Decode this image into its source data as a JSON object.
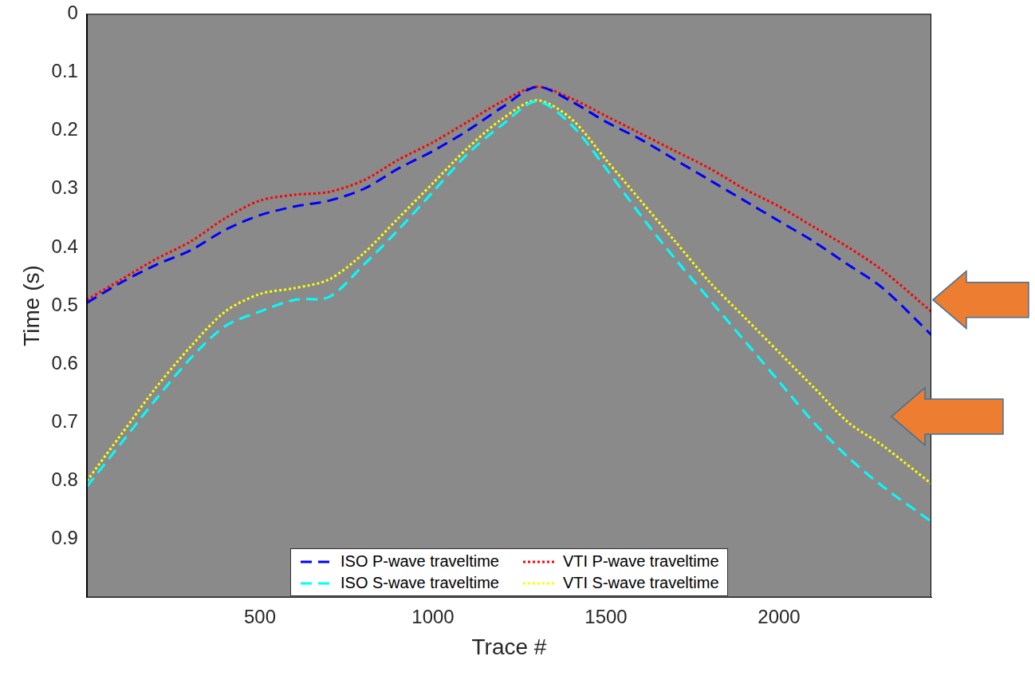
{
  "chart_data": {
    "type": "line",
    "x_label": "Trace #",
    "y_label": "Time (s)",
    "x": [
      0,
      100,
      200,
      300,
      400,
      500,
      600,
      700,
      800,
      900,
      1000,
      1100,
      1200,
      1300,
      1400,
      1500,
      1600,
      1700,
      1800,
      1900,
      2000,
      2100,
      2200,
      2300,
      2440
    ],
    "series": [
      {
        "name": "ISO P-wave traveltime",
        "color": "#0000ff",
        "line_style": "dashed",
        "values": [
          0.495,
          0.46,
          0.43,
          0.405,
          0.37,
          0.345,
          0.33,
          0.32,
          0.3,
          0.265,
          0.235,
          0.2,
          0.16,
          0.125,
          0.15,
          0.185,
          0.215,
          0.25,
          0.285,
          0.32,
          0.355,
          0.39,
          0.43,
          0.47,
          0.55
        ]
      },
      {
        "name": "VTI P-wave traveltime",
        "color": "#ff0000",
        "line_style": "dotted",
        "values": [
          0.49,
          0.455,
          0.42,
          0.39,
          0.35,
          0.32,
          0.31,
          0.305,
          0.285,
          0.25,
          0.22,
          0.185,
          0.15,
          0.125,
          0.145,
          0.175,
          0.205,
          0.235,
          0.265,
          0.3,
          0.33,
          0.365,
          0.4,
          0.44,
          0.51
        ]
      },
      {
        "name": "ISO S-wave traveltime",
        "color": "#00ffff",
        "line_style": "dashed",
        "values": [
          0.81,
          0.735,
          0.66,
          0.59,
          0.535,
          0.51,
          0.49,
          0.485,
          0.43,
          0.37,
          0.305,
          0.24,
          0.19,
          0.15,
          0.19,
          0.265,
          0.345,
          0.42,
          0.49,
          0.56,
          0.63,
          0.7,
          0.76,
          0.81,
          0.87
        ]
      },
      {
        "name": "VTI S-wave traveltime",
        "color": "#ffff00",
        "line_style": "dotted",
        "values": [
          0.8,
          0.72,
          0.64,
          0.57,
          0.51,
          0.48,
          0.47,
          0.455,
          0.41,
          0.35,
          0.29,
          0.23,
          0.18,
          0.148,
          0.18,
          0.25,
          0.32,
          0.39,
          0.46,
          0.52,
          0.58,
          0.64,
          0.7,
          0.74,
          0.805
        ]
      }
    ],
    "xlim": [
      0,
      2440
    ],
    "xticks": [
      500,
      1000,
      1500,
      2000
    ],
    "ylim": [
      0,
      1
    ],
    "yticks": [
      0,
      0.1,
      0.2,
      0.3,
      0.4,
      0.5,
      0.6,
      0.7,
      0.8,
      0.9
    ],
    "grid": false,
    "legend": "bottom"
  }
}
